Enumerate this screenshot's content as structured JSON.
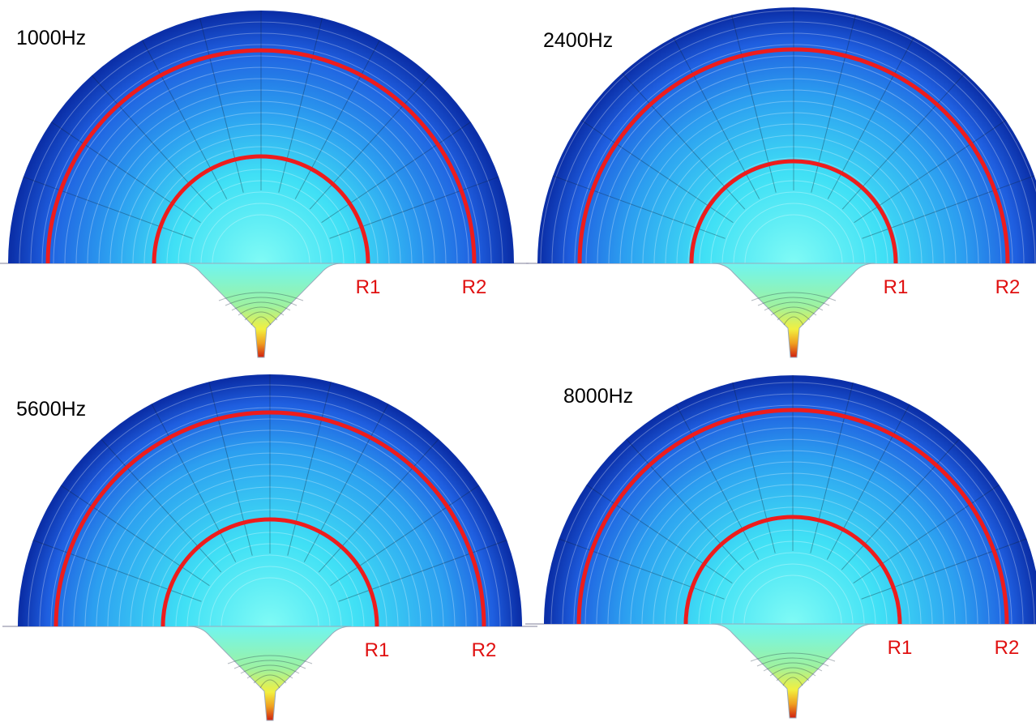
{
  "panels": [
    {
      "label": "1000Hz",
      "r1": "R1",
      "r2": "R2"
    },
    {
      "label": "2400Hz",
      "r1": "R1",
      "r2": "R2"
    },
    {
      "label": "5600Hz",
      "r1": "R1",
      "r2": "R2"
    },
    {
      "label": "8000Hz",
      "r1": "R1",
      "r2": "R2"
    }
  ]
}
